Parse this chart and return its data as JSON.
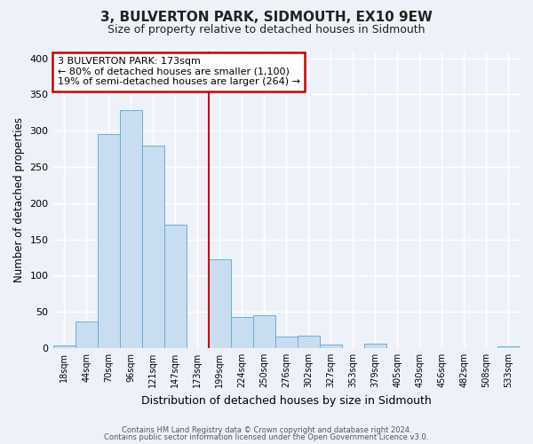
{
  "title": "3, BULVERTON PARK, SIDMOUTH, EX10 9EW",
  "subtitle": "Size of property relative to detached houses in Sidmouth",
  "xlabel": "Distribution of detached houses by size in Sidmouth",
  "ylabel": "Number of detached properties",
  "bin_labels": [
    "18sqm",
    "44sqm",
    "70sqm",
    "96sqm",
    "121sqm",
    "147sqm",
    "173sqm",
    "199sqm",
    "224sqm",
    "250sqm",
    "276sqm",
    "302sqm",
    "327sqm",
    "353sqm",
    "379sqm",
    "405sqm",
    "430sqm",
    "456sqm",
    "482sqm",
    "508sqm",
    "533sqm"
  ],
  "bin_values": [
    4,
    37,
    295,
    328,
    279,
    170,
    0,
    122,
    43,
    45,
    16,
    17,
    5,
    0,
    6,
    0,
    0,
    0,
    0,
    0,
    2
  ],
  "bar_color": "#c8ddf0",
  "bar_edge_color": "#6aaed6",
  "vline_color": "#cc0000",
  "annotation_title": "3 BULVERTON PARK: 173sqm",
  "annotation_line1": "← 80% of detached houses are smaller (1,100)",
  "annotation_line2": "19% of semi-detached houses are larger (264) →",
  "annotation_box_color": "#cc0000",
  "footer1": "Contains HM Land Registry data © Crown copyright and database right 2024.",
  "footer2": "Contains public sector information licensed under the Open Government Licence v3.0.",
  "ylim": [
    0,
    410
  ],
  "background_color": "#eef2f8"
}
